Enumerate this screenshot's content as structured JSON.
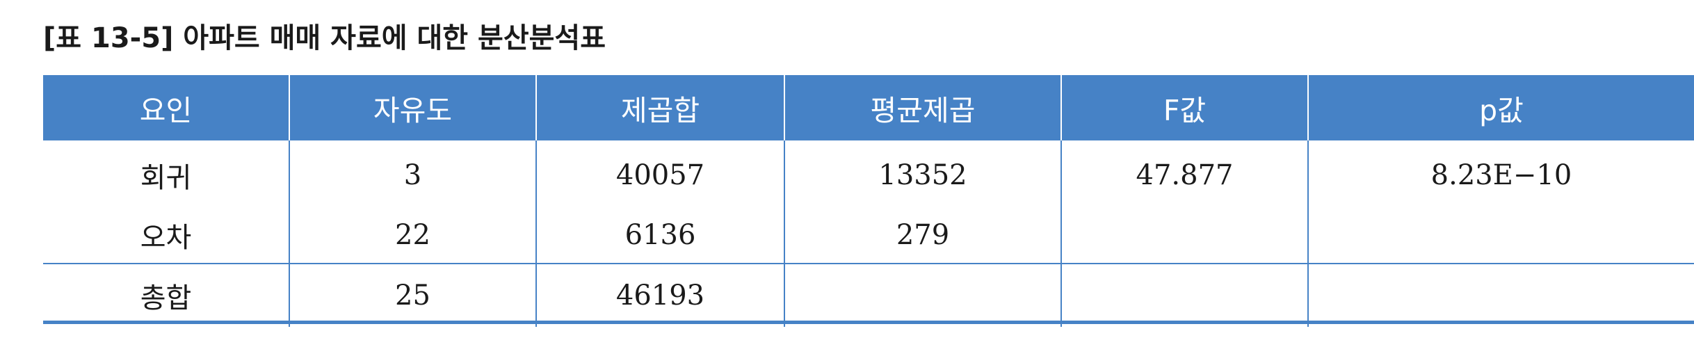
{
  "caption": "[표 13-5] 아파트 매매 자료에 대한 분산분석표",
  "colors": {
    "header_bg": "#4682c6",
    "header_text": "#ffffff",
    "rule": "#4682c6",
    "body_text": "#1a1a1a"
  },
  "table": {
    "headers": [
      "요인",
      "자유도",
      "제곱합",
      "평균제곱",
      "F값",
      "p값"
    ],
    "rows": [
      {
        "factor": "회귀",
        "df": "3",
        "ss": "40057",
        "ms": "13352",
        "f": "47.877",
        "p": "8.23E−10"
      },
      {
        "factor": "오차",
        "df": "22",
        "ss": "6136",
        "ms": "279",
        "f": "",
        "p": ""
      },
      {
        "factor": "총합",
        "df": "25",
        "ss": "46193",
        "ms": "",
        "f": "",
        "p": ""
      }
    ]
  }
}
